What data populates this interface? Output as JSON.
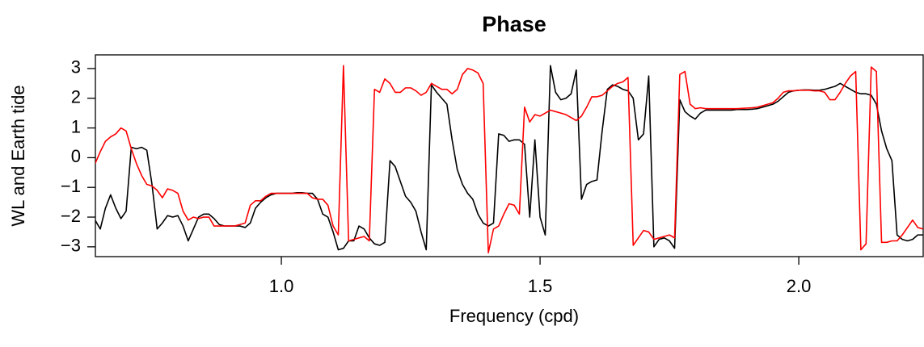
{
  "chart_data": {
    "type": "line",
    "title": "Phase",
    "xlabel": "Frequency (cpd)",
    "ylabel": "WL and Earth tide",
    "x": [
      0.64,
      0.65,
      0.66,
      0.67,
      0.68,
      0.69,
      0.7,
      0.71,
      0.72,
      0.73,
      0.74,
      0.75,
      0.76,
      0.77,
      0.78,
      0.79,
      0.8,
      0.81,
      0.82,
      0.83,
      0.84,
      0.85,
      0.86,
      0.87,
      0.88,
      0.89,
      0.9,
      0.91,
      0.92,
      0.93,
      0.94,
      0.95,
      0.96,
      0.97,
      0.98,
      0.99,
      1.0,
      1.01,
      1.02,
      1.03,
      1.04,
      1.05,
      1.06,
      1.07,
      1.08,
      1.09,
      1.1,
      1.11,
      1.12,
      1.13,
      1.14,
      1.15,
      1.16,
      1.17,
      1.18,
      1.19,
      1.2,
      1.21,
      1.22,
      1.23,
      1.24,
      1.25,
      1.26,
      1.27,
      1.28,
      1.29,
      1.3,
      1.31,
      1.32,
      1.33,
      1.34,
      1.35,
      1.36,
      1.37,
      1.38,
      1.39,
      1.4,
      1.41,
      1.42,
      1.43,
      1.44,
      1.45,
      1.46,
      1.47,
      1.48,
      1.49,
      1.5,
      1.51,
      1.52,
      1.53,
      1.54,
      1.55,
      1.56,
      1.57,
      1.58,
      1.59,
      1.6,
      1.61,
      1.62,
      1.63,
      1.64,
      1.65,
      1.66,
      1.67,
      1.68,
      1.69,
      1.7,
      1.71,
      1.72,
      1.73,
      1.74,
      1.75,
      1.76,
      1.77,
      1.78,
      1.79,
      1.8,
      1.81,
      1.82,
      1.83,
      1.84,
      1.85,
      1.86,
      1.87,
      1.88,
      1.89,
      1.9,
      1.91,
      1.92,
      1.93,
      1.94,
      1.95,
      1.96,
      1.97,
      1.98,
      1.99,
      2.0,
      2.01,
      2.02,
      2.03,
      2.04,
      2.05,
      2.06,
      2.07,
      2.08,
      2.09,
      2.1,
      2.11,
      2.12,
      2.13,
      2.14,
      2.15,
      2.16,
      2.17,
      2.18,
      2.19,
      2.2,
      2.21,
      2.22,
      2.23,
      2.24
    ],
    "series": [
      {
        "color": "#000000",
        "values": [
          -2.1,
          -2.4,
          -1.7,
          -1.25,
          -1.7,
          -2.05,
          -1.8,
          0.35,
          0.3,
          0.35,
          0.25,
          -0.9,
          -2.4,
          -2.2,
          -1.95,
          -2.0,
          -1.95,
          -2.3,
          -2.8,
          -2.4,
          -2.0,
          -1.9,
          -1.9,
          -2.05,
          -2.25,
          -2.3,
          -2.3,
          -2.3,
          -2.3,
          -2.35,
          -2.2,
          -1.7,
          -1.5,
          -1.35,
          -1.25,
          -1.2,
          -1.2,
          -1.2,
          -1.2,
          -1.18,
          -1.18,
          -1.2,
          -1.2,
          -1.4,
          -1.9,
          -2.0,
          -2.5,
          -3.1,
          -3.05,
          -2.8,
          -2.8,
          -2.3,
          -2.4,
          -2.7,
          -2.9,
          -2.95,
          -2.85,
          -0.1,
          -0.3,
          -0.8,
          -1.3,
          -1.5,
          -1.8,
          -2.5,
          -3.1,
          2.45,
          2.2,
          2.0,
          1.8,
          0.6,
          -0.4,
          -0.9,
          -1.2,
          -1.4,
          -1.9,
          -2.2,
          -2.3,
          -2.2,
          0.8,
          0.75,
          0.55,
          0.6,
          0.6,
          0.45,
          -2.0,
          0.6,
          -2.0,
          -2.6,
          3.1,
          2.2,
          1.95,
          2.0,
          2.15,
          2.95,
          -1.4,
          -0.9,
          -0.8,
          -0.75,
          0.9,
          2.3,
          2.45,
          2.4,
          2.3,
          2.25,
          2.0,
          0.6,
          0.8,
          2.75,
          -3.0,
          -2.75,
          -2.7,
          -2.8,
          -3.05,
          1.95,
          1.55,
          1.4,
          1.3,
          1.5,
          1.6,
          1.6,
          1.6,
          1.6,
          1.6,
          1.6,
          1.62,
          1.62,
          1.62,
          1.63,
          1.65,
          1.7,
          1.75,
          1.8,
          1.9,
          2.05,
          2.2,
          2.25,
          2.27,
          2.28,
          2.28,
          2.27,
          2.27,
          2.3,
          2.35,
          2.4,
          2.5,
          2.4,
          2.3,
          2.2,
          2.15,
          2.15,
          2.1,
          1.8,
          0.9,
          0.3,
          -0.1,
          -2.6,
          -2.75,
          -2.8,
          -2.75,
          -2.6,
          -2.6
        ]
      },
      {
        "color": "#ff0000",
        "values": [
          -0.2,
          0.2,
          0.55,
          0.7,
          0.8,
          1.0,
          0.9,
          0.3,
          -0.2,
          -0.6,
          -0.9,
          -0.95,
          -1.1,
          -1.35,
          -1.05,
          -1.1,
          -1.2,
          -1.8,
          -2.1,
          -2.0,
          -2.05,
          -2.0,
          -2.0,
          -2.3,
          -2.3,
          -2.3,
          -2.3,
          -2.3,
          -2.25,
          -2.2,
          -1.6,
          -1.45,
          -1.45,
          -1.3,
          -1.2,
          -1.2,
          -1.2,
          -1.2,
          -1.2,
          -1.2,
          -1.2,
          -1.2,
          -1.35,
          -1.4,
          -1.4,
          -1.6,
          -2.3,
          -2.6,
          3.1,
          -2.8,
          -2.75,
          -2.7,
          -2.65,
          -2.8,
          2.3,
          2.2,
          2.65,
          2.5,
          2.2,
          2.2,
          2.35,
          2.35,
          2.25,
          2.1,
          2.2,
          2.5,
          2.4,
          2.3,
          2.3,
          2.15,
          2.3,
          2.8,
          3.0,
          2.95,
          2.85,
          2.5,
          -3.2,
          -2.4,
          -2.3,
          -1.9,
          -1.55,
          -1.6,
          -1.9,
          1.7,
          1.2,
          1.45,
          1.4,
          1.5,
          1.6,
          1.55,
          1.5,
          1.45,
          1.35,
          1.25,
          1.4,
          1.7,
          2.05,
          2.05,
          2.1,
          2.25,
          2.4,
          2.5,
          2.55,
          2.7,
          -2.95,
          -2.7,
          -2.45,
          -2.5,
          -2.75,
          -2.7,
          -2.65,
          -2.6,
          -2.7,
          2.8,
          2.9,
          1.8,
          1.65,
          1.68,
          1.65,
          1.65,
          1.65,
          1.65,
          1.65,
          1.65,
          1.65,
          1.66,
          1.67,
          1.68,
          1.7,
          1.75,
          1.8,
          1.85,
          2.0,
          2.2,
          2.25,
          2.25,
          2.27,
          2.27,
          2.27,
          2.25,
          2.25,
          2.2,
          1.95,
          1.95,
          2.2,
          2.5,
          2.75,
          2.9,
          -3.1,
          -2.9,
          3.05,
          2.9,
          -2.85,
          -2.85,
          -2.8,
          -2.8,
          -2.6,
          -2.35,
          -2.1,
          -2.35,
          -2.4
        ]
      }
    ],
    "xlim": [
      0.6406,
      2.242
    ],
    "ylim": [
      -3.33,
      3.46
    ],
    "xticks": [
      {
        "value": 1,
        "label": "1.0"
      },
      1.5,
      {
        "value": 2,
        "label": "2.0"
      }
    ],
    "yticks": [
      {
        "value": -3,
        "label": "−3"
      },
      {
        "value": -2,
        "label": "−2"
      },
      {
        "value": -1,
        "label": "−1"
      },
      0,
      1,
      2,
      3
    ]
  }
}
